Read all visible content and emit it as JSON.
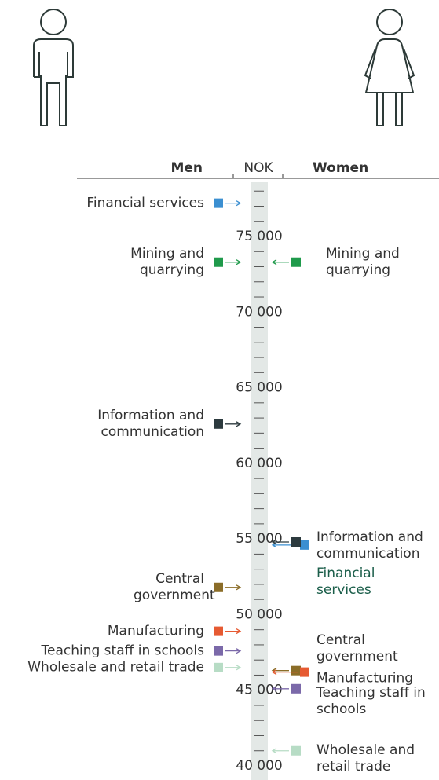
{
  "chart_data": {
    "type": "dot",
    "header": {
      "left": "Men",
      "center": "NOK",
      "right": "Women"
    },
    "categories": [
      "Financial services",
      "Mining and quarrying",
      "Information and communication",
      "Central government",
      "Manufacturing",
      "Teaching staff in schools",
      "Wholesale and retail trade"
    ],
    "colors": [
      "#3b8fd1",
      "#1f9a4b",
      "#2c3a3e",
      "#8b6d28",
      "#e65a32",
      "#7b69a9",
      "#b7dcc5"
    ],
    "series": [
      {
        "name": "Men",
        "values": [
          77200,
          73300,
          62600,
          51800,
          48900,
          47600,
          46500
        ]
      },
      {
        "name": "Women",
        "values": [
          54600,
          73300,
          54800,
          46300,
          46200,
          45100,
          41000
        ],
        "highlight_label": 0,
        "highlight_color": "#1b5e4a"
      }
    ],
    "ylim": [
      40000,
      75000
    ],
    "yticks": [
      {
        "value": 40000,
        "label": "40 000"
      },
      {
        "value": 45000,
        "label": "45 000"
      },
      {
        "value": 50000,
        "label": "50 000"
      },
      {
        "value": 55000,
        "label": "55 000"
      },
      {
        "value": 60000,
        "label": "60 000"
      },
      {
        "value": 65000,
        "label": "65 000"
      },
      {
        "value": 70000,
        "label": "70 000"
      },
      {
        "value": 75000,
        "label": "75 000"
      }
    ],
    "minor_yticks": [
      41000,
      42000,
      43000,
      44000,
      46000,
      47000,
      48000,
      49000,
      51000,
      52000,
      53000,
      54000,
      56000,
      57000,
      58000,
      59000,
      61000,
      62000,
      63000,
      64000,
      66000,
      67000,
      68000,
      69000,
      71000,
      72000,
      73000,
      74000,
      76000,
      77000,
      78000
    ]
  }
}
